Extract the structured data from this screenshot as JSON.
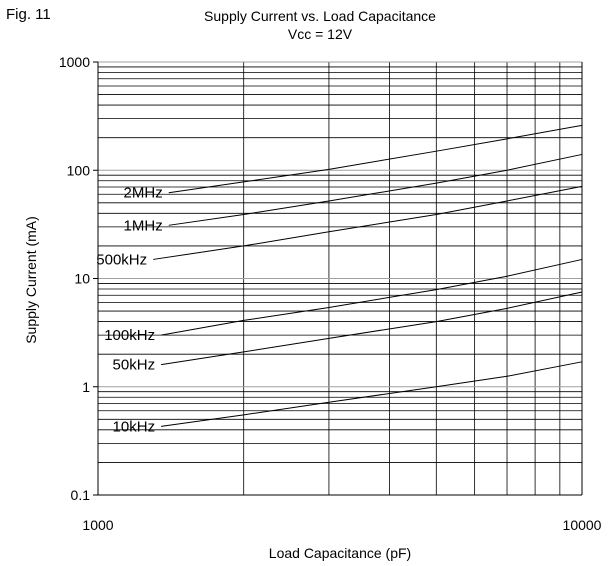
{
  "figure_label": "Fig. 11",
  "chart_data": {
    "type": "line",
    "title": "Supply Current vs. Load Capacitance",
    "subtitle": "Vcc = 12V",
    "xlabel": "Load Capacitance (pF)",
    "ylabel": "Supply Current (mA)",
    "xscale": "log",
    "yscale": "log",
    "xlim": [
      1000,
      10000
    ],
    "ylim": [
      0.1,
      1000
    ],
    "x_ticks": [
      "1000",
      "10000"
    ],
    "y_ticks": [
      "0.1",
      "1",
      "10",
      "100",
      "1000"
    ],
    "grid": true,
    "legend": "none",
    "series": [
      {
        "name": "2MHz",
        "x": [
          1400,
          2000,
          3000,
          5000,
          7000,
          10000
        ],
        "y": [
          62,
          78,
          102,
          150,
          195,
          260
        ]
      },
      {
        "name": "1MHz",
        "x": [
          1400,
          2000,
          3000,
          5000,
          7000,
          10000
        ],
        "y": [
          31,
          39,
          52,
          76,
          100,
          140
        ]
      },
      {
        "name": "500kHz",
        "x": [
          1300,
          2000,
          3000,
          5000,
          7000,
          10000
        ],
        "y": [
          15,
          20,
          27,
          39,
          52,
          71
        ]
      },
      {
        "name": "100kHz",
        "x": [
          1350,
          2000,
          3000,
          5000,
          7000,
          10000
        ],
        "y": [
          3.0,
          4.1,
          5.4,
          7.9,
          10.5,
          15
        ]
      },
      {
        "name": "50kHz",
        "x": [
          1350,
          2000,
          3000,
          5000,
          7000,
          10000
        ],
        "y": [
          1.6,
          2.1,
          2.8,
          4.0,
          5.3,
          7.5
        ]
      },
      {
        "name": "10kHz",
        "x": [
          1350,
          2000,
          3000,
          5000,
          7000,
          10000
        ],
        "y": [
          0.43,
          0.55,
          0.72,
          1.0,
          1.25,
          1.7
        ]
      }
    ]
  }
}
